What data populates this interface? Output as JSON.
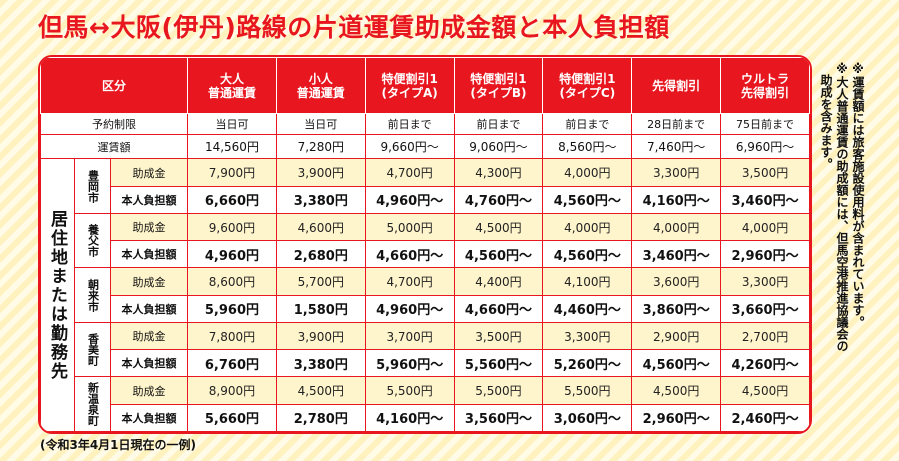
{
  "title": "但馬↔大阪(伊丹)路線の片道運賃助成金額と本人負担額",
  "table": {
    "corner": "区分",
    "columns": [
      {
        "line1": "大人",
        "line2": "普通運賃"
      },
      {
        "line1": "小人",
        "line2": "普通運賃"
      },
      {
        "line1": "特便割引1",
        "line2": "(タイプA)"
      },
      {
        "line1": "特便割引1",
        "line2": "(タイプB)"
      },
      {
        "line1": "特便割引1",
        "line2": "(タイプC)"
      },
      {
        "line1": "先得割引",
        "line2": ""
      },
      {
        "line1": "ウルトラ",
        "line2": "先得割引"
      }
    ],
    "reservation": {
      "label": "予約制限",
      "values": [
        "当日可",
        "当日可",
        "前日まで",
        "前日まで",
        "前日まで",
        "28日前まで",
        "75日前まで"
      ]
    },
    "fare": {
      "label": "運賃額",
      "values": [
        "14,560円",
        "7,280円",
        "9,660円〜",
        "9,060円〜",
        "8,560円〜",
        "7,460円〜",
        "6,960円〜"
      ]
    },
    "side_label": "居住地または勤務先",
    "grant_label": "助成金",
    "burden_label": "本人負担額",
    "cities": [
      {
        "name": "豊岡市",
        "grant": [
          "7,900円",
          "3,900円",
          "4,700円",
          "4,300円",
          "4,000円",
          "3,300円",
          "3,500円"
        ],
        "burden": [
          "6,660円",
          "3,380円",
          "4,960円〜",
          "4,760円〜",
          "4,560円〜",
          "4,160円〜",
          "3,460円〜"
        ]
      },
      {
        "name": "養父市",
        "grant": [
          "9,600円",
          "4,600円",
          "5,000円",
          "4,500円",
          "4,000円",
          "4,000円",
          "4,000円"
        ],
        "burden": [
          "4,960円",
          "2,680円",
          "4,660円〜",
          "4,560円〜",
          "4,560円〜",
          "3,460円〜",
          "2,960円〜"
        ]
      },
      {
        "name": "朝来市",
        "grant": [
          "8,600円",
          "5,700円",
          "4,700円",
          "4,400円",
          "4,100円",
          "3,600円",
          "3,300円"
        ],
        "burden": [
          "5,960円",
          "1,580円",
          "4,960円〜",
          "4,660円〜",
          "4,460円〜",
          "3,860円〜",
          "3,660円〜"
        ]
      },
      {
        "name": "香美町",
        "grant": [
          "7,800円",
          "3,900円",
          "3,700円",
          "3,500円",
          "3,300円",
          "2,900円",
          "2,700円"
        ],
        "burden": [
          "6,760円",
          "3,380円",
          "5,960円〜",
          "5,560円〜",
          "5,260円〜",
          "4,560円〜",
          "4,260円〜"
        ]
      },
      {
        "name": "新温泉町",
        "grant": [
          "8,900円",
          "4,500円",
          "5,500円",
          "5,500円",
          "5,500円",
          "4,500円",
          "4,500円"
        ],
        "burden": [
          "5,660円",
          "2,780円",
          "4,160円〜",
          "3,560円〜",
          "3,060円〜",
          "2,960円〜",
          "2,460円〜"
        ]
      }
    ]
  },
  "note": "※運賃額には旅客施設使用料が含まれています。\n※大人普通運賃の助成額には、但馬空港推進協議会の\n　助成を含みます。",
  "footnote": "(令和3年4月1日現在の一例)",
  "colors": {
    "accent": "#e8161f",
    "grant_bg": "#fff5cc",
    "page_bg": "#fff7d2"
  }
}
